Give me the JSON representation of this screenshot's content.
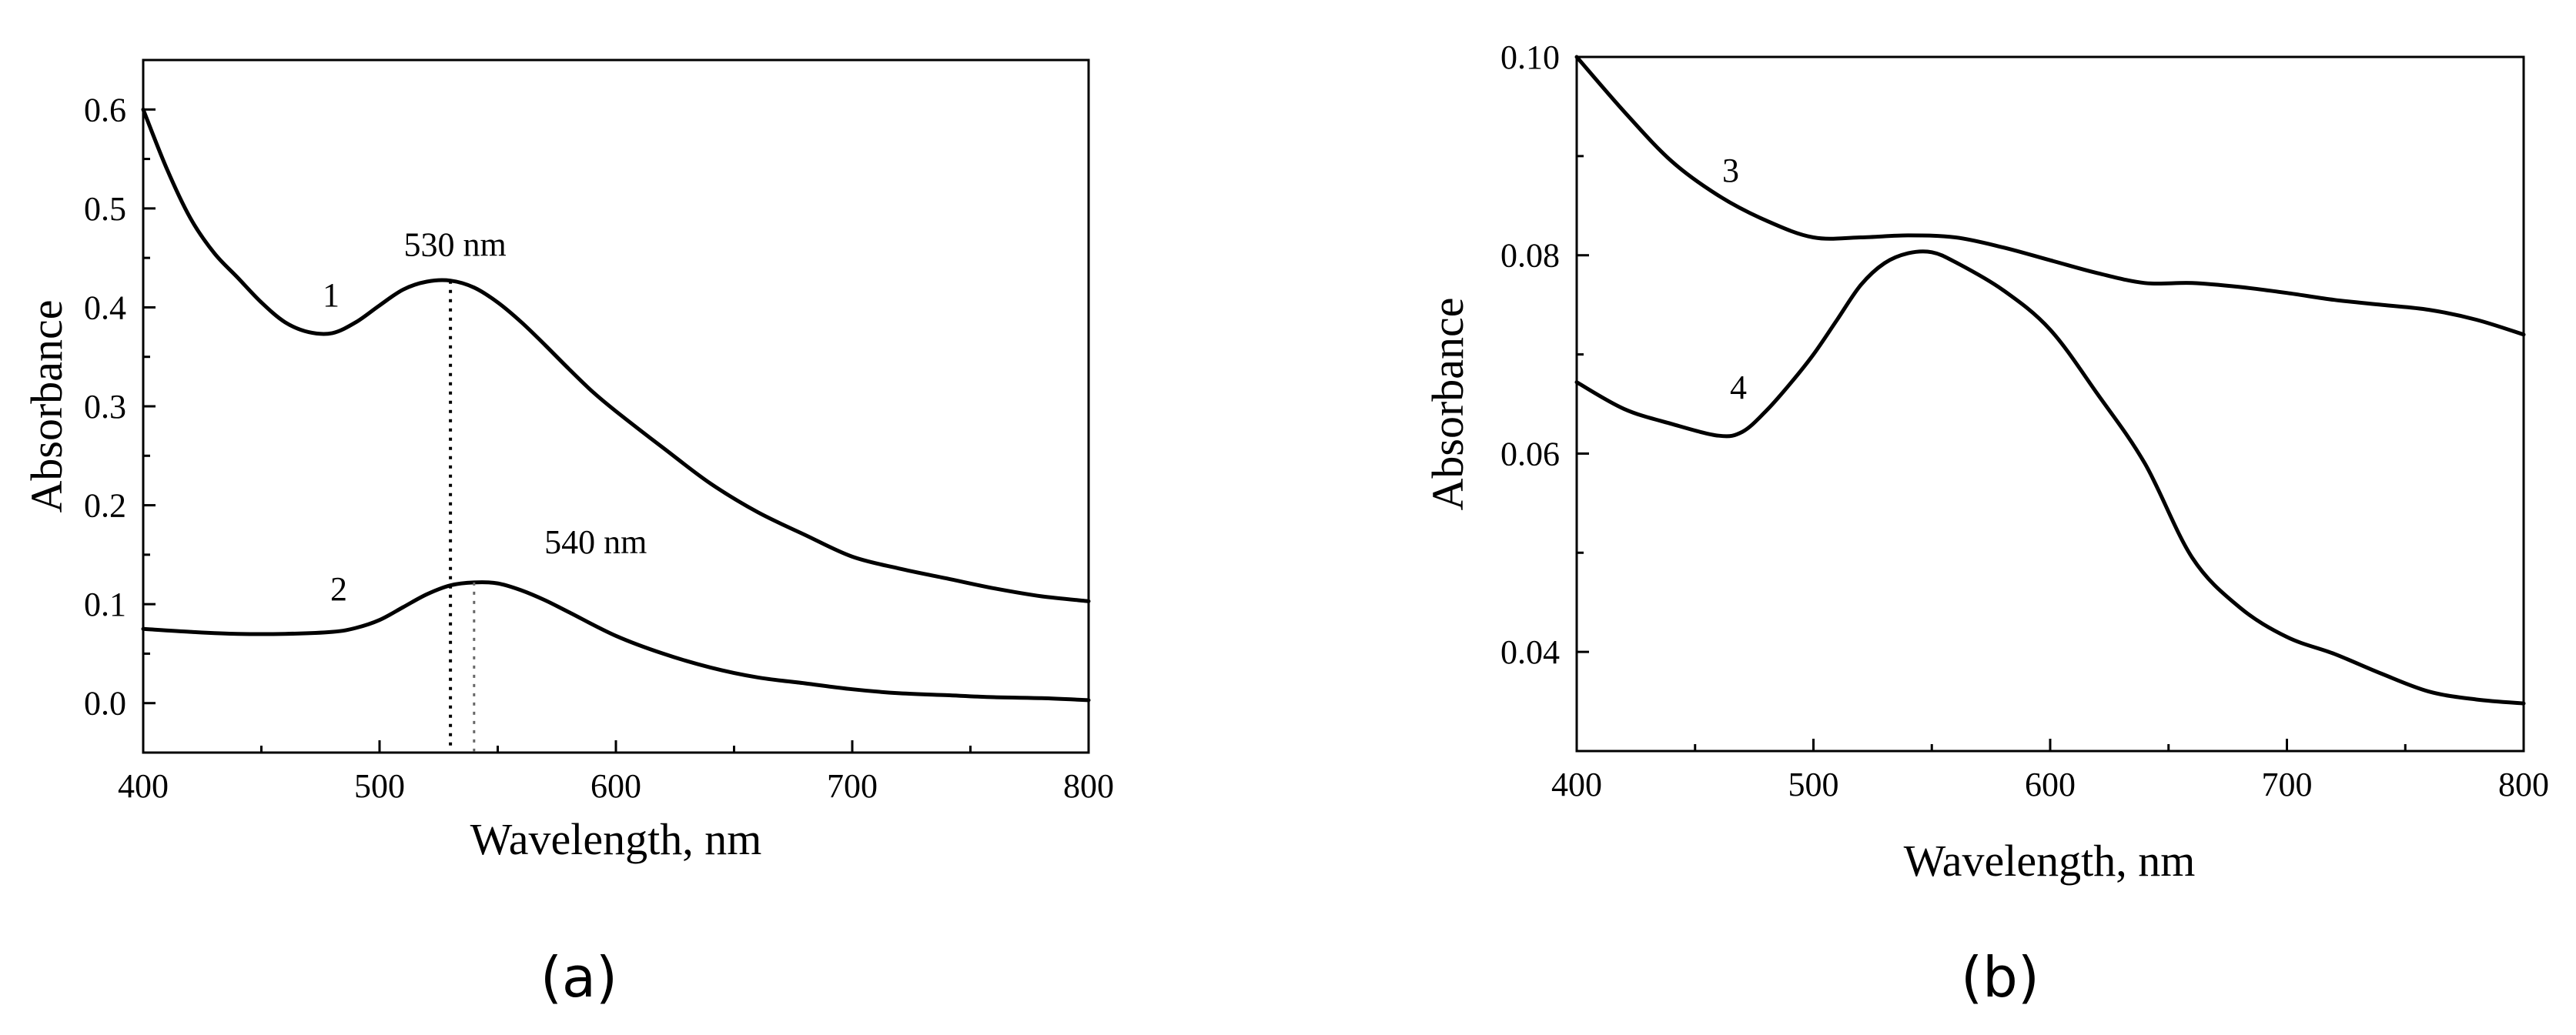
{
  "chart_data": [
    {
      "type": "line",
      "panel_label": "(a)",
      "xlabel": "Wavelength, nm",
      "ylabel": "Absorbance",
      "xlim": [
        400,
        800
      ],
      "ylim": [
        -0.05,
        0.65
      ],
      "xticks": [
        400,
        500,
        600,
        700,
        800
      ],
      "xtick_labels": [
        "400",
        "500",
        "600",
        "700",
        "800"
      ],
      "yticks": [
        0.0,
        0.1,
        0.2,
        0.3,
        0.4,
        0.5,
        0.6
      ],
      "ytick_labels": [
        "0.0",
        "0.1",
        "0.2",
        "0.3",
        "0.4",
        "0.5",
        "0.6"
      ],
      "series": [
        {
          "name": "1",
          "x": [
            400,
            410,
            420,
            430,
            440,
            450,
            460,
            470,
            480,
            490,
            500,
            510,
            520,
            530,
            540,
            550,
            560,
            570,
            580,
            590,
            600,
            620,
            640,
            660,
            680,
            700,
            720,
            740,
            760,
            780,
            800
          ],
          "y": [
            0.6,
            0.54,
            0.49,
            0.455,
            0.43,
            0.405,
            0.385,
            0.375,
            0.374,
            0.385,
            0.402,
            0.418,
            0.426,
            0.427,
            0.42,
            0.405,
            0.385,
            0.362,
            0.338,
            0.315,
            0.295,
            0.258,
            0.222,
            0.193,
            0.17,
            0.148,
            0.136,
            0.126,
            0.116,
            0.108,
            0.103
          ]
        },
        {
          "name": "2",
          "x": [
            400,
            420,
            440,
            460,
            480,
            490,
            500,
            510,
            520,
            530,
            540,
            550,
            560,
            570,
            580,
            600,
            620,
            640,
            660,
            680,
            700,
            720,
            740,
            760,
            780,
            800
          ],
          "y": [
            0.075,
            0.072,
            0.07,
            0.07,
            0.072,
            0.076,
            0.084,
            0.097,
            0.11,
            0.119,
            0.122,
            0.121,
            0.114,
            0.104,
            0.092,
            0.068,
            0.05,
            0.036,
            0.026,
            0.02,
            0.014,
            0.01,
            0.008,
            0.006,
            0.005,
            0.003
          ]
        }
      ],
      "annotations": [
        {
          "text": "530 nm",
          "x": 530,
          "y": 0.427
        },
        {
          "text": "540 nm",
          "x": 540,
          "y": 0.122
        }
      ]
    },
    {
      "type": "line",
      "panel_label": "(b)",
      "xlabel": "Wavelength, nm",
      "ylabel": "Absorbance",
      "xlim": [
        400,
        800
      ],
      "ylim": [
        0.03,
        0.1
      ],
      "xticks": [
        400,
        500,
        600,
        700,
        800
      ],
      "xtick_labels": [
        "400",
        "500",
        "600",
        "700",
        "800"
      ],
      "yticks": [
        0.04,
        0.06,
        0.08,
        0.1
      ],
      "ytick_labels": [
        "0.04",
        "0.06",
        "0.08",
        "0.10"
      ],
      "series": [
        {
          "name": "3",
          "x": [
            400,
            420,
            440,
            460,
            480,
            500,
            520,
            540,
            560,
            580,
            600,
            620,
            640,
            660,
            680,
            700,
            720,
            740,
            760,
            780,
            800
          ],
          "y": [
            0.1,
            0.0945,
            0.0895,
            0.086,
            0.0835,
            0.0818,
            0.0818,
            0.082,
            0.0818,
            0.0808,
            0.0795,
            0.0782,
            0.0772,
            0.0772,
            0.0768,
            0.0762,
            0.0755,
            0.075,
            0.0745,
            0.0735,
            0.072
          ]
        },
        {
          "name": "4",
          "x": [
            400,
            420,
            440,
            460,
            470,
            480,
            490,
            500,
            510,
            520,
            530,
            540,
            550,
            560,
            580,
            600,
            620,
            640,
            660,
            680,
            700,
            720,
            740,
            760,
            780,
            800
          ],
          "y": [
            0.0672,
            0.0645,
            0.063,
            0.0618,
            0.0622,
            0.0643,
            0.067,
            0.07,
            0.0735,
            0.077,
            0.0792,
            0.0802,
            0.0803,
            0.0793,
            0.0765,
            0.0725,
            0.066,
            0.059,
            0.0495,
            0.0445,
            0.0415,
            0.0398,
            0.0378,
            0.036,
            0.0352,
            0.0348
          ]
        }
      ],
      "annotations": []
    }
  ]
}
